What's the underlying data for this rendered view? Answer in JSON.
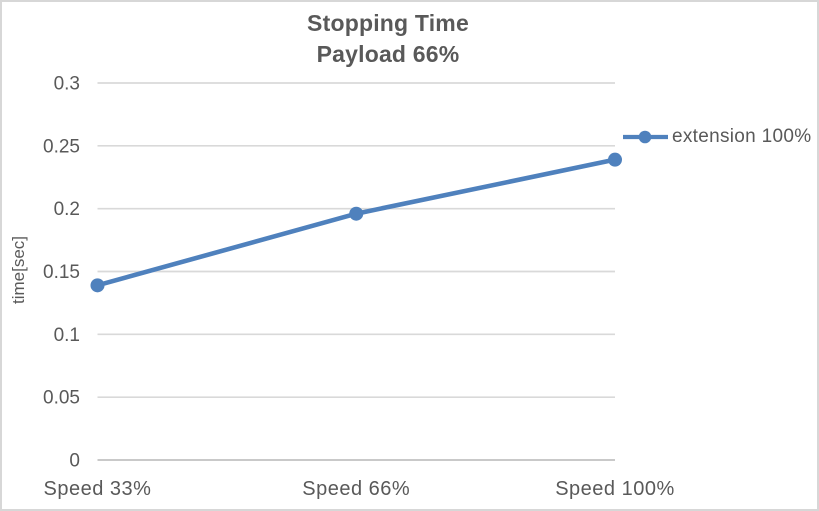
{
  "window": {
    "background": "#FFFFFF",
    "border_color": "#D7D7D7"
  },
  "chart_data": {
    "type": "line",
    "title": "Stopping Time",
    "subtitle": "Payload 66%",
    "categories": [
      "Speed 33%",
      "Speed 66%",
      "Speed 100%"
    ],
    "series": [
      {
        "name": "extension 100%",
        "color": "#4F81BD",
        "marker": "circle",
        "values": [
          0.139,
          0.196,
          0.239
        ]
      }
    ],
    "xlabel": "",
    "ylabel": "time[sec]",
    "ylim": [
      0,
      0.3
    ],
    "ytick_step": 0.05,
    "y_ticks": [
      {
        "value": 0,
        "label": "0"
      },
      {
        "value": 0.05,
        "label": "0.05"
      },
      {
        "value": 0.1,
        "label": "0.1"
      },
      {
        "value": 0.15,
        "label": "0.15"
      },
      {
        "value": 0.2,
        "label": "0.2"
      },
      {
        "value": 0.25,
        "label": "0.25"
      },
      {
        "value": 0.3,
        "label": "0.3"
      }
    ],
    "grid": "horizontal-only",
    "legend": {
      "position": "right",
      "entries": [
        "extension 100%"
      ]
    },
    "colors": {
      "series": "#4F81BD",
      "gridline": "#D9D9D9",
      "axis_line": "#C9C9C9",
      "text": "#595959",
      "title_text": "#595959"
    }
  }
}
